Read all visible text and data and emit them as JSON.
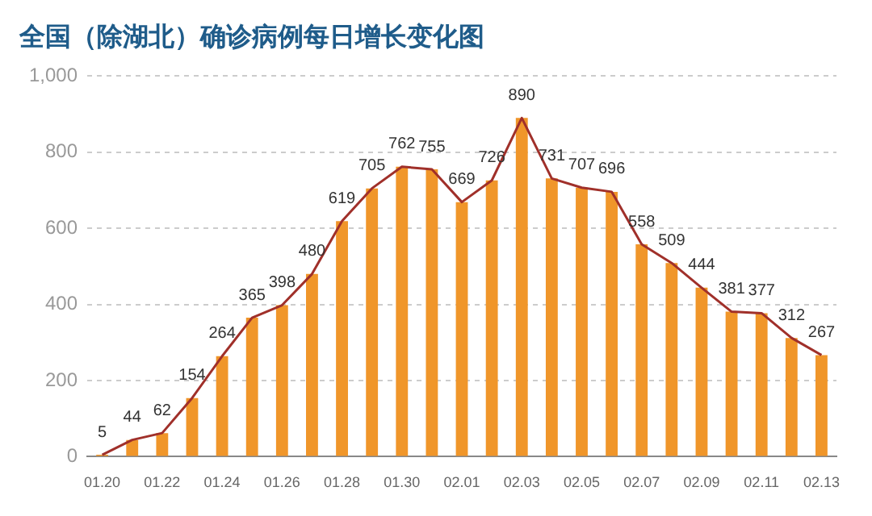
{
  "chart_data": {
    "type": "bar",
    "title": "全国（除湖北）确诊病例每日增长变化图",
    "categories": [
      "01.20",
      null,
      "01.22",
      null,
      "01.24",
      null,
      "01.26",
      null,
      "01.28",
      null,
      "01.30",
      null,
      "02.01",
      null,
      "02.03",
      null,
      "02.05",
      null,
      "02.07",
      null,
      "02.09",
      null,
      "02.11",
      null,
      "02.13"
    ],
    "series": [
      {
        "color": "#f0962a",
        "values": [
          5,
          44,
          62,
          154,
          264,
          365,
          398,
          480,
          619,
          705,
          762,
          755,
          669,
          726,
          890,
          731,
          707,
          696,
          558,
          509,
          444,
          381,
          377,
          312,
          267
        ]
      },
      {
        "type": "line",
        "color": "#a0302a",
        "values": [
          5,
          44,
          62,
          154,
          264,
          365,
          398,
          480,
          619,
          705,
          762,
          755,
          669,
          726,
          890,
          731,
          707,
          696,
          558,
          509,
          444,
          381,
          377,
          312,
          267
        ],
        "value_labels": [
          "5",
          "44",
          "62",
          "154",
          "264",
          "365",
          "398",
          "480",
          "619",
          "705",
          "762",
          "755",
          "669",
          "726",
          "890",
          "731",
          "707",
          "696",
          "558",
          "509",
          "444",
          "381",
          "377",
          "312",
          "267"
        ]
      }
    ],
    "ylim": [
      0,
      1000
    ],
    "yticks": [
      0,
      200,
      400,
      600,
      800,
      {
        "value": 1000,
        "label": "1,000"
      }
    ],
    "grid": "y",
    "marker": "none",
    "line_style": "solid",
    "legend": false
  }
}
